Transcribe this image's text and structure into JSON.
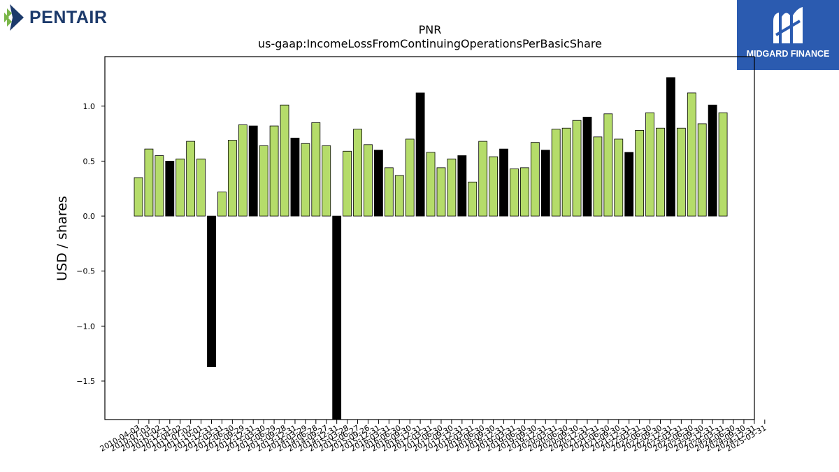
{
  "logos": {
    "left": {
      "text": "PENTAIR",
      "icon": "pentair-arrow-icon"
    },
    "right": {
      "text": "MIDGARD FINANCE",
      "icon": "midgard-m-icon"
    }
  },
  "colors": {
    "quarterly_bar": "#b5dc6a",
    "annual_bar": "#000000",
    "axis": "#000000"
  },
  "chart_data": {
    "type": "bar",
    "title": "PNR",
    "subtitle": "us-gaap:IncomeLossFromContinuingOperationsPerBasicShare",
    "xlabel": "",
    "ylabel": "USD / shares",
    "ylim": [
      -1.85,
      1.45
    ],
    "yticks": [
      -1.5,
      -1.0,
      -0.5,
      0.0,
      0.5,
      1.0
    ],
    "ytick_labels": [
      "−1.5",
      "−1.0",
      "−0.5",
      "0.0",
      "0.5",
      "1.0"
    ],
    "grid": false,
    "categories": [
      "2010-04-03",
      "2010-07-03",
      "2010-10-02",
      "2010-12-31",
      "2011-04-02",
      "2011-07-02",
      "2011-10-01",
      "2011-12-31",
      "2012-03-31",
      "2012-06-30",
      "2012-09-29",
      "2012-12-31",
      "2013-03-30",
      "2013-06-29",
      "2013-09-28",
      "2013-12-31",
      "2014-03-29",
      "2014-06-28",
      "2014-09-27",
      "2014-12-31",
      "2015-03-28",
      "2015-06-27",
      "2015-09-26",
      "2015-12-31",
      "2016-03-31",
      "2016-06-30",
      "2016-09-30",
      "2016-12-31",
      "2017-03-31",
      "2017-06-30",
      "2017-09-30",
      "2017-12-31",
      "2018-03-31",
      "2018-06-30",
      "2018-09-30",
      "2018-12-31",
      "2019-03-31",
      "2019-06-30",
      "2019-09-30",
      "2019-12-31",
      "2020-03-31",
      "2020-06-30",
      "2020-09-30",
      "2020-12-31",
      "2021-03-31",
      "2021-06-30",
      "2021-09-30",
      "2021-12-31",
      "2022-03-31",
      "2022-06-30",
      "2022-09-30",
      "2022-12-31",
      "2023-03-31",
      "2023-06-30",
      "2023-09-30",
      "2023-12-31",
      "2024-03-31",
      "2024-06-30",
      "2024-09-30",
      "2024-12-31",
      "2025-03-31"
    ],
    "series": [
      {
        "values": [
          0.35,
          0.61,
          0.55,
          0.5,
          0.52,
          0.68,
          0.52,
          -1.37,
          0.22,
          0.69,
          0.83,
          0.82,
          0.64,
          0.82,
          1.01,
          0.71,
          0.66,
          0.85,
          0.64,
          -1.95,
          0.59,
          0.79,
          0.65,
          0.6,
          0.44,
          0.37,
          0.7,
          1.12,
          0.58,
          0.44,
          0.52,
          0.55,
          0.31,
          0.68,
          0.54,
          0.61,
          0.43,
          0.44,
          0.67,
          0.6,
          0.79,
          0.8,
          0.87,
          0.9,
          0.72,
          0.93,
          0.7,
          0.58,
          0.78,
          0.94,
          0.8,
          1.26,
          0.8,
          1.12,
          0.84,
          1.01,
          0.94,
          0,
          0,
          0,
          0
        ],
        "annual_flags": [
          0,
          0,
          0,
          1,
          0,
          0,
          0,
          1,
          0,
          0,
          0,
          1,
          0,
          0,
          0,
          1,
          0,
          0,
          0,
          1,
          0,
          0,
          0,
          1,
          0,
          0,
          0,
          1,
          0,
          0,
          0,
          1,
          0,
          0,
          0,
          1,
          0,
          0,
          0,
          1,
          0,
          0,
          0,
          1,
          0,
          0,
          0,
          1,
          0,
          0,
          0,
          1,
          0,
          0,
          0,
          1,
          0,
          0,
          0,
          1,
          0
        ]
      }
    ]
  }
}
